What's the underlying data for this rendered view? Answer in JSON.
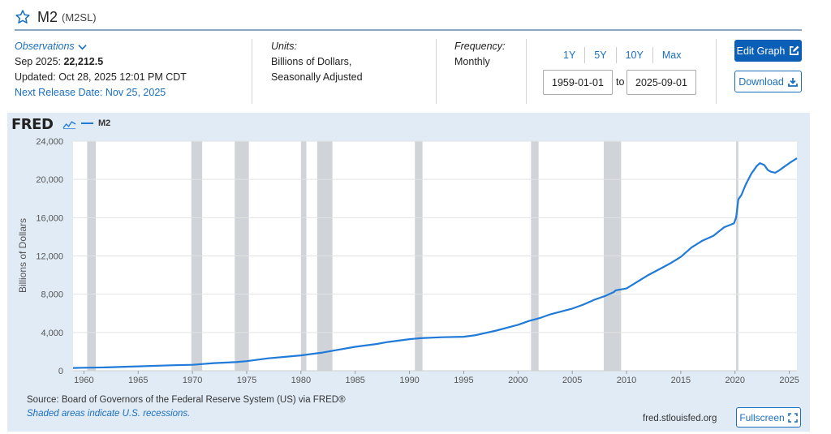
{
  "header": {
    "title": "M2",
    "series_id": "(M2SL)"
  },
  "observations": {
    "label": "Observations",
    "date_label": "Sep 2025:",
    "value": "22,212.5",
    "updated": "Updated: Oct 28, 2025 12:01 PM CDT",
    "next_release": "Next Release Date: Nov 25, 2025"
  },
  "units": {
    "label": "Units:",
    "line1": "Billions of Dollars,",
    "line2": "Seasonally Adjusted"
  },
  "frequency": {
    "label": "Frequency:",
    "value": "Monthly"
  },
  "range_buttons": [
    "1Y",
    "5Y",
    "10Y",
    "Max"
  ],
  "date_range": {
    "start": "1959-01-01",
    "to_label": "to",
    "end": "2025-09-01"
  },
  "actions": {
    "edit_graph": "Edit Graph",
    "download": "Download",
    "fullscreen": "Fullscreen"
  },
  "chart_header": {
    "logo": "FRED",
    "legend_label": "M2"
  },
  "footer": {
    "source": "Source: Board of Governors of the Federal Reserve System (US) via FRED®",
    "shaded_note": "Shaded areas indicate U.S. recessions.",
    "site": "fred.stlouisfed.org"
  },
  "colors": {
    "line": "#1f7ad8",
    "panel": "#e1ebf5",
    "recession": "#d0d3d7",
    "accent": "#0c5fb6"
  },
  "icons": [
    "star-icon",
    "chevron-down-icon",
    "edit-icon",
    "download-icon",
    "fullscreen-icon",
    "sparkline-icon"
  ],
  "chart_data": {
    "type": "line",
    "ylabel": "Billions of Dollars",
    "xlabel": "",
    "xlim": [
      1959.0,
      2025.7
    ],
    "ylim": [
      0,
      24000
    ],
    "yticks": [
      0,
      4000,
      8000,
      12000,
      16000,
      20000,
      24000
    ],
    "ytick_labels": [
      "0",
      "4,000",
      "8,000",
      "12,000",
      "16,000",
      "20,000",
      "24,000"
    ],
    "xticks": [
      1960,
      1965,
      1970,
      1975,
      1980,
      1985,
      1990,
      1995,
      2000,
      2005,
      2010,
      2015,
      2020,
      2025
    ],
    "xtick_labels": [
      "1960",
      "1965",
      "1970",
      "1975",
      "1980",
      "1985",
      "1990",
      "1995",
      "2000",
      "2005",
      "2010",
      "2015",
      "2020",
      "2025"
    ],
    "grid": true,
    "legend_position": "top-left",
    "recessions": [
      [
        1960.3,
        1961.1
      ],
      [
        1969.9,
        1970.9
      ],
      [
        1973.9,
        1975.2
      ],
      [
        1980.0,
        1980.5
      ],
      [
        1981.5,
        1982.9
      ],
      [
        1990.5,
        1991.2
      ],
      [
        2001.2,
        2001.9
      ],
      [
        2007.9,
        2009.5
      ],
      [
        2020.1,
        2020.3
      ]
    ],
    "series": [
      {
        "name": "M2",
        "x": [
          1959.0,
          1960.0,
          1962.0,
          1965.0,
          1968.0,
          1970.0,
          1972.0,
          1974.0,
          1975.0,
          1977.0,
          1980.0,
          1982.0,
          1983.0,
          1985.0,
          1987.0,
          1988.0,
          1990.0,
          1991.0,
          1993.0,
          1995.0,
          1996.0,
          1998.0,
          2000.0,
          2001.0,
          2002.0,
          2003.0,
          2004.0,
          2005.0,
          2006.0,
          2007.0,
          2008.0,
          2008.8,
          2009.0,
          2010.0,
          2011.0,
          2012.0,
          2013.0,
          2014.0,
          2015.0,
          2016.0,
          2017.0,
          2018.0,
          2019.0,
          2019.9,
          2020.1,
          2020.3,
          2020.6,
          2021.0,
          2021.5,
          2022.0,
          2022.3,
          2022.7,
          2023.0,
          2023.3,
          2023.7,
          2024.0,
          2024.5,
          2025.0,
          2025.7
        ],
        "y": [
          290,
          310,
          350,
          460,
          570,
          620,
          800,
          900,
          1000,
          1300,
          1600,
          1900,
          2100,
          2500,
          2800,
          3000,
          3300,
          3400,
          3500,
          3550,
          3700,
          4200,
          4800,
          5200,
          5500,
          5900,
          6200,
          6500,
          6900,
          7400,
          7800,
          8200,
          8400,
          8600,
          9300,
          10000,
          10600,
          11200,
          11900,
          12900,
          13600,
          14100,
          15000,
          15400,
          16000,
          17900,
          18400,
          19500,
          20600,
          21400,
          21700,
          21500,
          21000,
          20800,
          20700,
          20900,
          21300,
          21700,
          22212.5
        ]
      }
    ]
  }
}
